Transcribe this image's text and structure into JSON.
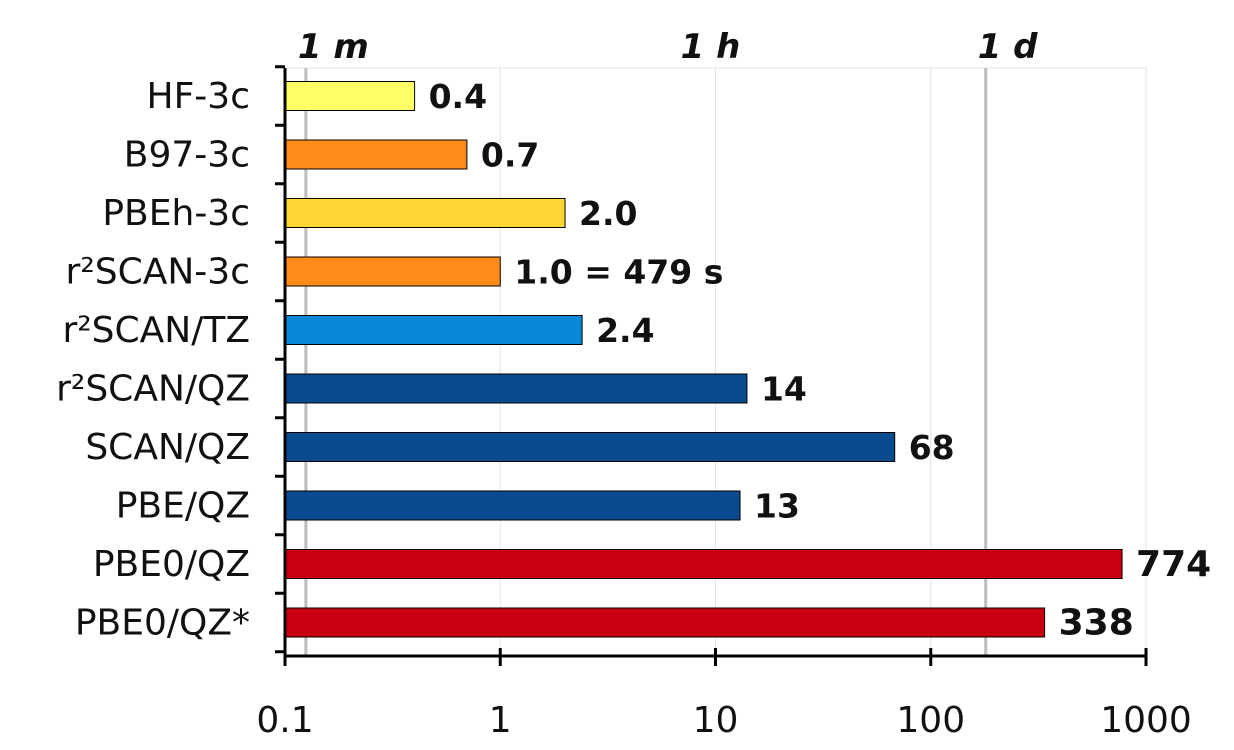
{
  "chart_data": {
    "type": "bar",
    "orientation": "horizontal",
    "x_scale": "log",
    "xlim": [
      0.1,
      1000
    ],
    "x_ticks": [
      {
        "value": 0.1,
        "label": "0.1"
      },
      {
        "value": 1,
        "label": "1"
      },
      {
        "value": 10,
        "label": "10"
      },
      {
        "value": 100,
        "label": "100"
      },
      {
        "value": 1000,
        "label": "1000"
      }
    ],
    "grid": true,
    "legend": "none",
    "reference_lines": [
      {
        "value": 0.125,
        "label": "1 m"
      },
      {
        "value": 7.5,
        "label": "1 h"
      },
      {
        "value": 180,
        "label": "1 d"
      }
    ],
    "categories": [
      "HF-3c",
      "B97-3c",
      "PBEh-3c",
      "r²SCAN-3c",
      "r²SCAN/TZ",
      "r²SCAN/QZ",
      "SCAN/QZ",
      "PBE/QZ",
      "PBE0/QZ",
      "PBE0/QZ*"
    ],
    "values": [
      0.4,
      0.7,
      2.0,
      1.0,
      2.4,
      14,
      68,
      13,
      774,
      338
    ],
    "value_labels": [
      "0.4",
      "0.7",
      "2.0",
      "1.0 = 479 s",
      "2.4",
      "14",
      "68",
      "13",
      "774",
      "338"
    ],
    "colors": [
      "#ffff66",
      "#ff8c1a",
      "#ffd633",
      "#ff8c1a",
      "#0a88d8",
      "#0a4a8f",
      "#0a4a8f",
      "#0a4a8f",
      "#c8000f",
      "#c8000f"
    ]
  }
}
